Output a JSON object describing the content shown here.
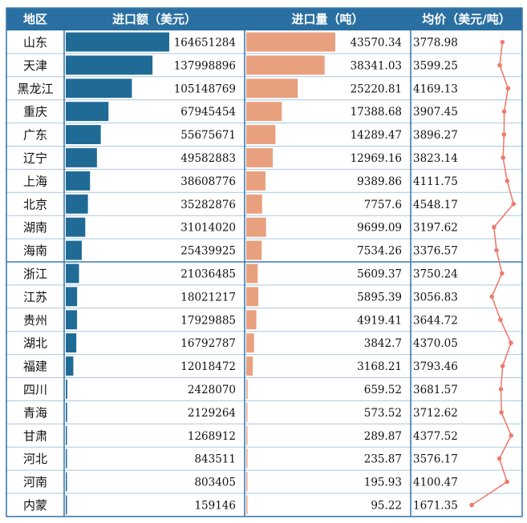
{
  "chart_data": {
    "type": "table",
    "columns": [
      "地区",
      "进口额（美元）",
      "进口量（吨）",
      "均价（美元/吨）"
    ],
    "colors": {
      "header_bg": "#2a6fa1",
      "amount_bar": "#1f6b96",
      "volume_bar": "#e9a07e",
      "price_line": "#ef7b6c",
      "grid": "#3c7bb0"
    },
    "rows": [
      {
        "region": "山东",
        "amount": 164651284,
        "volume": "43570.34",
        "price": "3778.98"
      },
      {
        "region": "天津",
        "amount": 137998896,
        "volume": "38341.03",
        "price": "3599.25"
      },
      {
        "region": "黑龙江",
        "amount": 105148769,
        "volume": "25220.81",
        "price": "4169.13"
      },
      {
        "region": "重庆",
        "amount": 67945454,
        "volume": "17388.68",
        "price": "3907.45"
      },
      {
        "region": "广东",
        "amount": 55675671,
        "volume": "14289.47",
        "price": "3896.27"
      },
      {
        "region": "辽宁",
        "amount": 49582883,
        "volume": "12969.16",
        "price": "3823.14"
      },
      {
        "region": "上海",
        "amount": 38608776,
        "volume": "9389.86",
        "price": "4111.75"
      },
      {
        "region": "北京",
        "amount": 35282876,
        "volume": "7757.6",
        "price": "4548.17"
      },
      {
        "region": "湖南",
        "amount": 31014020,
        "volume": "9699.09",
        "price": "3197.62"
      },
      {
        "region": "海南",
        "amount": 25439925,
        "volume": "7534.26",
        "price": "3376.57"
      },
      {
        "region": "浙江",
        "amount": 21036485,
        "volume": "5609.37",
        "price": "3750.24"
      },
      {
        "region": "江苏",
        "amount": 18021217,
        "volume": "5895.39",
        "price": "3056.83"
      },
      {
        "region": "贵州",
        "amount": 17929885,
        "volume": "4919.41",
        "price": "3644.72"
      },
      {
        "region": "湖北",
        "amount": 16792787,
        "volume": "3842.7",
        "price": "4370.05"
      },
      {
        "region": "福建",
        "amount": 12018472,
        "volume": "3168.21",
        "price": "3793.46"
      },
      {
        "region": "四川",
        "amount": 2428070,
        "volume": "659.52",
        "price": "3681.57"
      },
      {
        "region": "青海",
        "amount": 2129264,
        "volume": "573.52",
        "price": "3712.62"
      },
      {
        "region": "甘肃",
        "amount": 1268912,
        "volume": "289.87",
        "price": "4377.52"
      },
      {
        "region": "河北",
        "amount": 843511,
        "volume": "235.87",
        "price": "3576.17"
      },
      {
        "region": "河南",
        "amount": 803405,
        "volume": "195.93",
        "price": "4100.47"
      },
      {
        "region": "内蒙",
        "amount": 159146,
        "volume": "95.22",
        "price": "1671.35"
      }
    ]
  }
}
